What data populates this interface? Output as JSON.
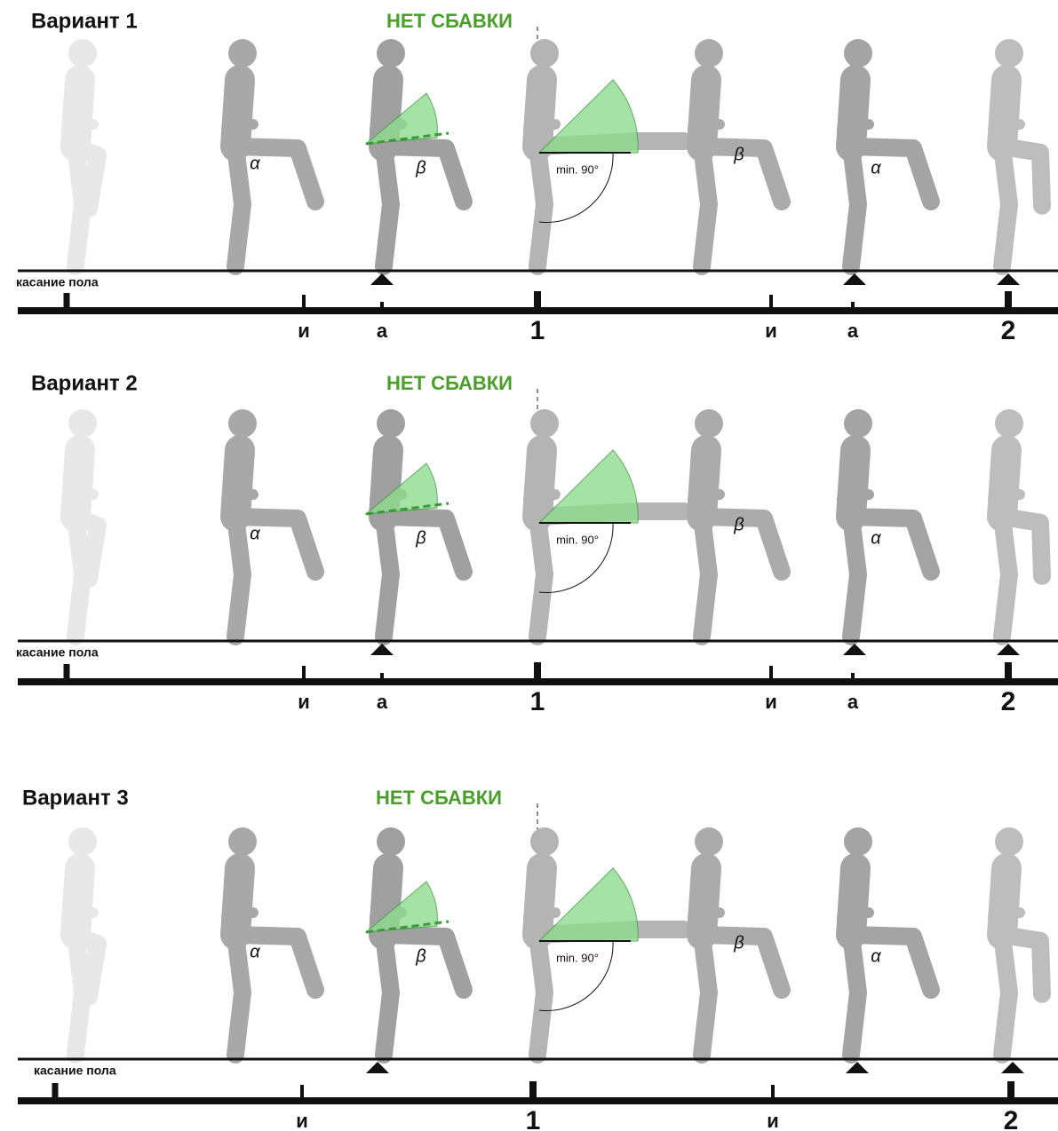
{
  "variants": [
    {
      "title": "Вариант 1",
      "note": "НЕТ СБАВКИ",
      "floor_label": "касание пола",
      "beats": [
        "и",
        "а",
        "1",
        "и",
        "а",
        "2"
      ],
      "angles": [
        "α",
        "β",
        "min. 90°",
        "β",
        "α"
      ]
    },
    {
      "title": "Вариант 2",
      "note": "НЕТ СБАВКИ",
      "floor_label": "касание пола",
      "beats": [
        "и",
        "а",
        "1",
        "и",
        "а",
        "2"
      ],
      "angles": [
        "α",
        "β",
        "min. 90°",
        "β",
        "α"
      ]
    },
    {
      "title": "Вариант 3",
      "note": "НЕТ СБАВКИ",
      "floor_label": "касание пола",
      "beats": [
        "и",
        "1",
        "и",
        "2"
      ],
      "angles": [
        "α",
        "β",
        "min. 90°",
        "β",
        "α"
      ]
    }
  ]
}
